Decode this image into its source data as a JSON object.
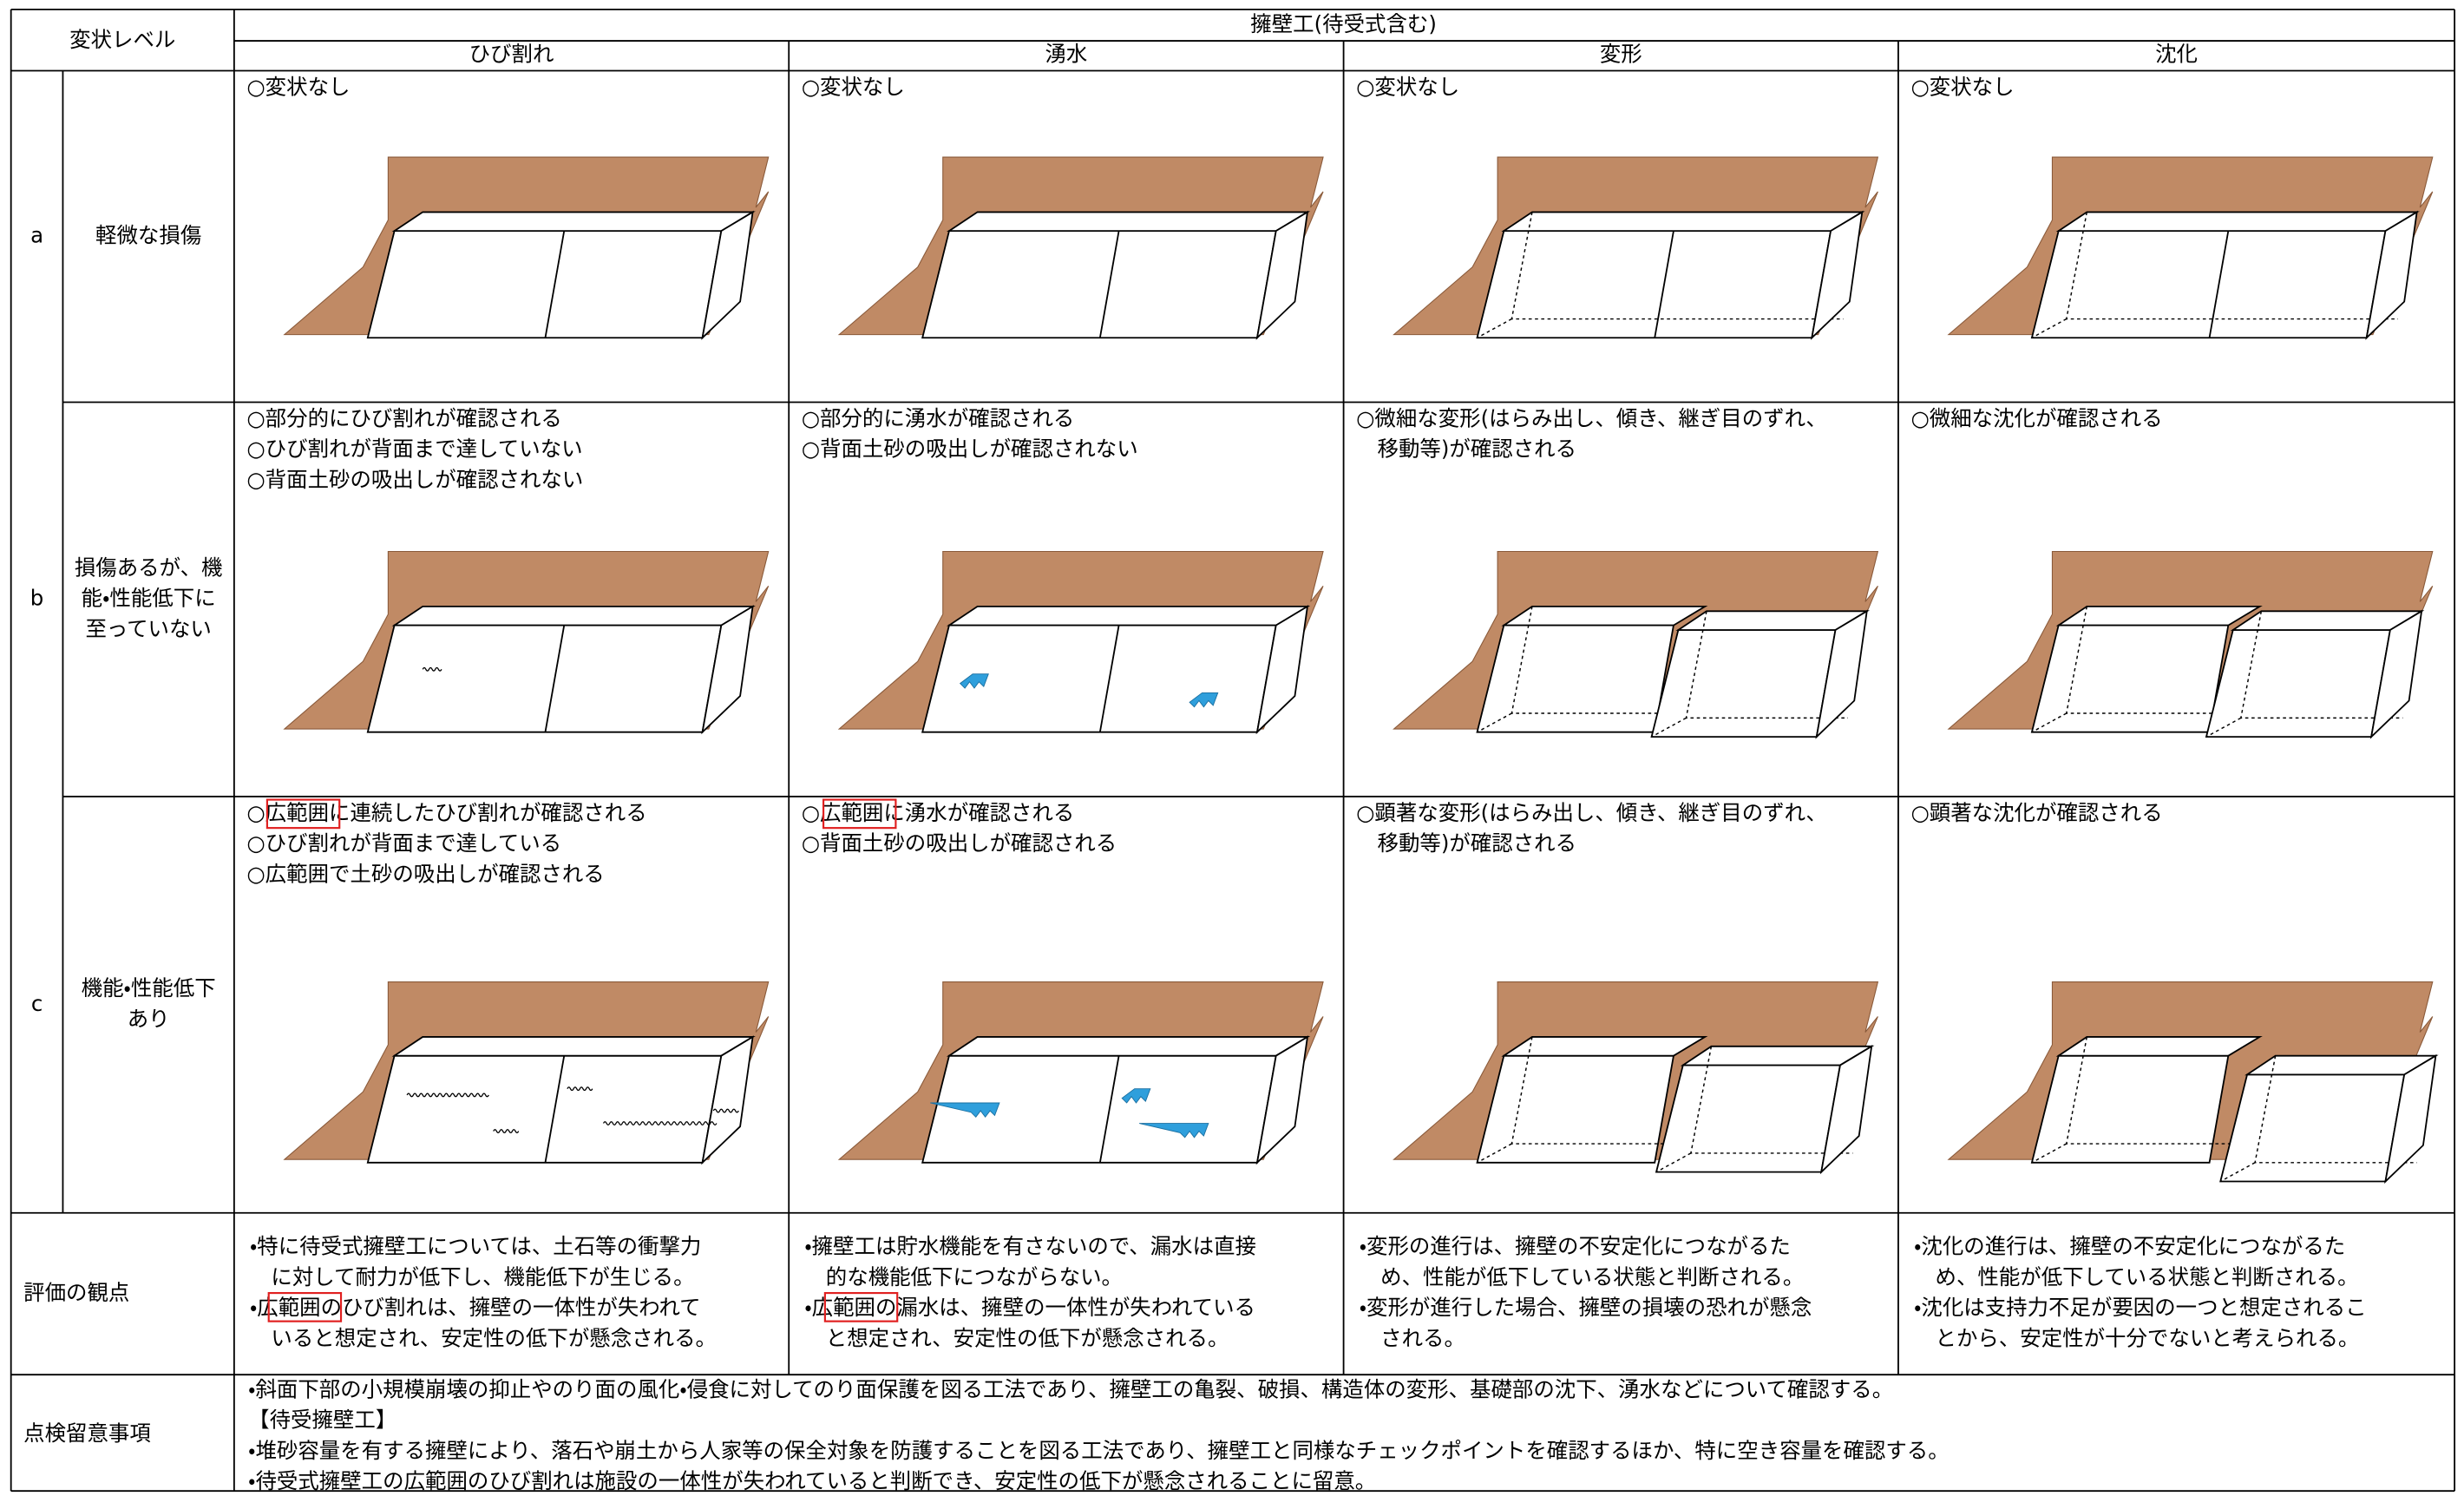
{
  "header": {
    "level_label": "変状レベル",
    "group_title": "擁壁工(待受式含む)",
    "columns": [
      "ひび割れ",
      "湧水",
      "変形",
      "沈化"
    ]
  },
  "rows": [
    {
      "level": "a",
      "description": [
        "軽微な損傷"
      ],
      "cells": [
        [
          "○変状なし"
        ],
        [
          "○変状なし"
        ],
        [
          "○変状なし"
        ],
        [
          "○変状なし"
        ]
      ]
    },
    {
      "level": "b",
      "description": [
        "損傷あるが、機",
        "能・性能低下に",
        "至っていない"
      ],
      "cells": [
        [
          "○部分的にひび割れが確認される",
          "○ひび割れが背面まで達していない",
          "○背面土砂の吸出しが確認されない"
        ],
        [
          "○部分的に湧水が確認される",
          "○背面土砂の吸出しが確認されない"
        ],
        [
          "○微細な変形(はらみ出し、傾き、継ぎ目のずれ、",
          "　移動等)が確認される"
        ],
        [
          "○微細な沈化が確認される"
        ]
      ]
    },
    {
      "level": "c",
      "description": [
        "機能・性能低下",
        "あり"
      ],
      "cells": [
        [
          "○広範囲に連続したひび割れが確認される",
          "○ひび割れが背面まで達している",
          "○広範囲で土砂の吸出しが確認される"
        ],
        [
          "○広範囲に湧水が確認される",
          "○背面土砂の吸出しが確認される"
        ],
        [
          "○顕著な変形(はらみ出し、傾き、継ぎ目のずれ、",
          "　移動等)が確認される"
        ],
        [
          "○顕著な沈化が確認される"
        ]
      ]
    }
  ],
  "evaluation": {
    "label": "評価の観点",
    "cells": [
      [
        "・特に待受式擁壁工については、土石等の衝撃力",
        "　に対して耐力が低下し、機能低下が生じる。",
        "・広範囲のひび割れは、擁壁の一体性が失われて",
        "　いると想定され、安定性の低下が懸念される。"
      ],
      [
        "・擁壁工は貯水機能を有さないので、漏水は直接",
        "　的な機能低下につながらない。",
        "・広範囲の漏水は、擁壁の一体性が失われている",
        "　と想定され、安定性の低下が懸念される。"
      ],
      [
        "・変形の進行は、擁壁の不安定化につながるた",
        "　め、性能が低下している状態と判断される。",
        "・変形が進行した場合、擁壁の損壊の恐れが懸念",
        "　される。"
      ],
      [
        "・沈化の進行は、擁壁の不安定化につながるた",
        "　め、性能が低下している状態と判断される。",
        "・沈化は支持力不足が要因の一つと想定されるこ",
        "　とから、安定性が十分でないと考えられる。"
      ]
    ]
  },
  "inspection": {
    "label": "点検留意事項",
    "lines": [
      "・斜面下部の小規模崩壊の抑止やのり面の風化・侵食に対してのり面保護を図る工法であり、擁壁工の亀裂、破損、構造体の変形、基礎部の沈下、湧水などについて確認する。",
      "【待受擁壁工】",
      "・堆砂容量を有する擁壁により、落石や崩土から人家等の保全対象を防護することを図る工法であり、擁壁工と同様なチェックポイントを確認するほか、特に空き容量を確認する。",
      "・待受式擁壁工の広範囲のひび割れは施設の一体性が失われていると判断でき、安定性の低下が懸念されることに留意。"
    ]
  }
}
